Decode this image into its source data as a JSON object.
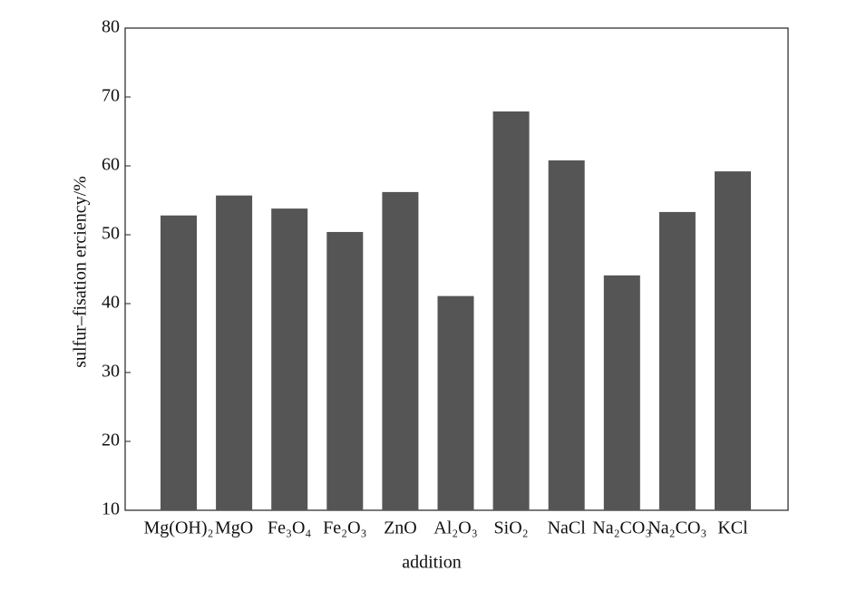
{
  "chart_data": {
    "type": "bar",
    "x_label": "addition",
    "y_label": "sulfur–fisation erciency/%",
    "categories": [
      "Mg(OH)₂",
      "MgO",
      "Fe₃O₄",
      "Fe₂O₃",
      "ZnO",
      "Al₂O₃",
      "SiO₂",
      "NaCl",
      "Na₂CO₃",
      "Na₂CO₃",
      "KCl"
    ],
    "values": [
      52.8,
      55.7,
      53.8,
      50.4,
      56.2,
      41.1,
      67.9,
      60.8,
      44.1,
      53.3,
      59.2
    ],
    "color": "#555555",
    "ylim": [
      10,
      80
    ],
    "yticks": [
      10,
      20,
      30,
      40,
      50,
      60,
      70,
      80
    ],
    "grid": false
  }
}
